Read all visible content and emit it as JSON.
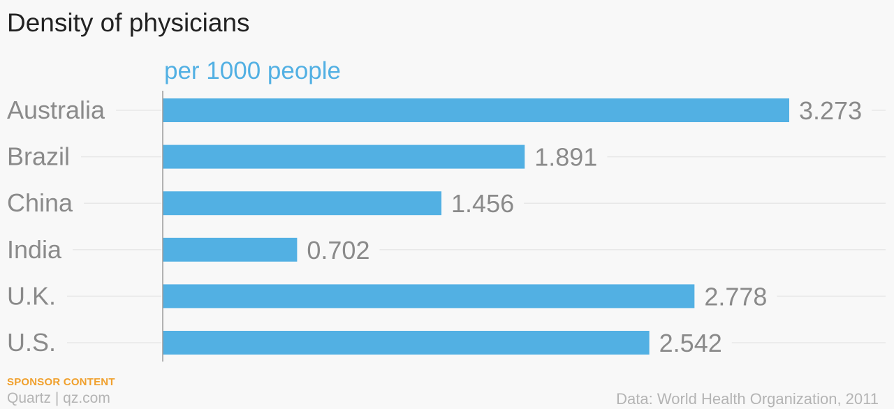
{
  "chart_data": {
    "type": "bar",
    "orientation": "horizontal",
    "title": "Density of physicians",
    "subtitle": "per 1000 people",
    "categories": [
      "Australia",
      "Brazil",
      "China",
      "India",
      "U.K.",
      "U.S."
    ],
    "values": [
      3.273,
      1.891,
      1.456,
      0.702,
      2.778,
      2.542
    ],
    "value_labels": [
      "3.273",
      "1.891",
      "1.456",
      "0.702",
      "2.778",
      "2.542"
    ],
    "xlim": [
      0,
      3.273
    ],
    "grid": true,
    "legend": "none",
    "colors": {
      "bar": "#52b0e3",
      "subtitle": "#52b0e3",
      "category_label": "#8a8a8a",
      "value_label": "#8a8a8a",
      "gridline": "#e8e8e8",
      "axis": "#9a9a9a"
    }
  },
  "footer": {
    "sponsor": "SPONSOR CONTENT",
    "brand": "Quartz | qz.com",
    "source": "Data: World Health Organization, 2011"
  }
}
